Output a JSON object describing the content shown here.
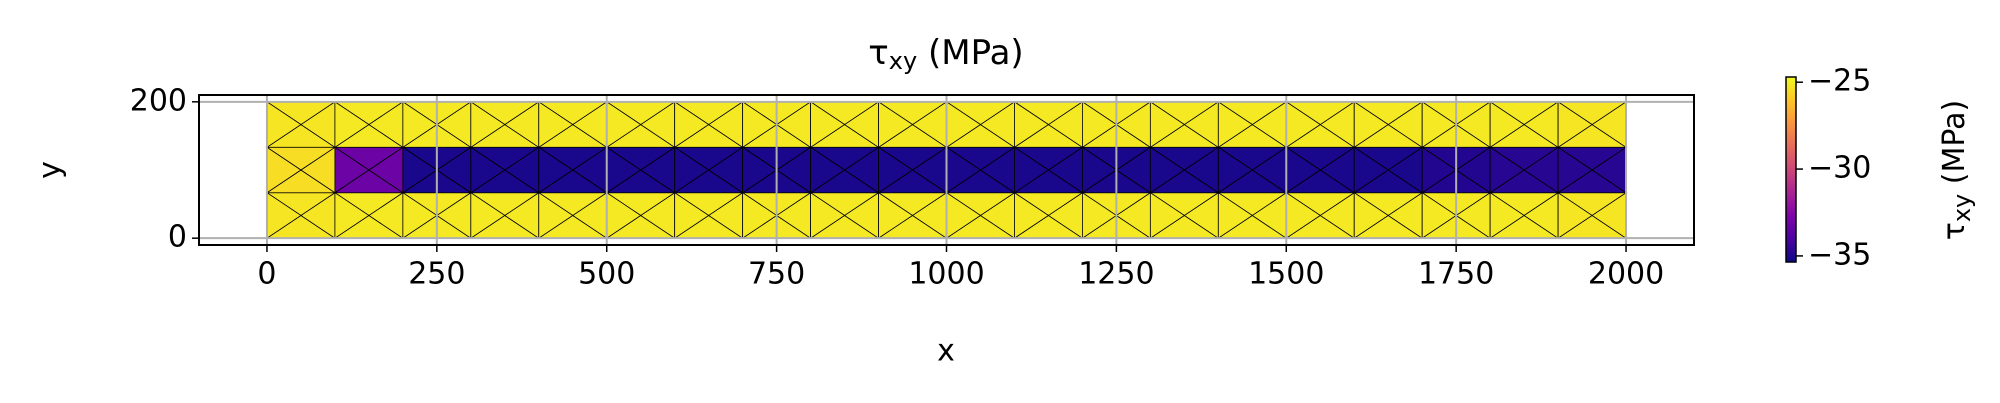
{
  "chart_data": {
    "type": "tripcolor",
    "title": {
      "symbol": "τ",
      "subscript": "xy",
      "unit": "(MPa)"
    },
    "xlabel": "x",
    "ylabel": "y",
    "colorbar_label": {
      "symbol": "τ",
      "subscript": "xy",
      "unit": "(MPa)"
    },
    "colormap": "plasma",
    "x": [
      0,
      100,
      200,
      300,
      400,
      500,
      600,
      700,
      800,
      900,
      1000,
      1100,
      1200,
      1300,
      1400,
      1500,
      1600,
      1700,
      1800,
      1900,
      2000
    ],
    "y": [
      0,
      66.67,
      133.33,
      200
    ],
    "values": [
      [
        -25.2,
        -25.1,
        -25.1,
        -25.1,
        -25.1,
        -25.1,
        -25.1,
        -25.1,
        -25.1,
        -25.1,
        -25.1,
        -25.1,
        -25.1,
        -25.1,
        -25.1,
        -25.1,
        -25.1,
        -25.1,
        -25.1,
        -25.2
      ],
      [
        -25.4,
        -33.2,
        -35.1,
        -35.1,
        -35.1,
        -35.1,
        -35.1,
        -35.1,
        -35.1,
        -35.1,
        -35.1,
        -35.1,
        -35.1,
        -35.1,
        -35.1,
        -35.1,
        -35.1,
        -34.9,
        -34.8,
        -34.8
      ],
      [
        -25.2,
        -25.1,
        -25.1,
        -25.1,
        -25.1,
        -25.1,
        -25.1,
        -25.1,
        -25.1,
        -25.1,
        -25.1,
        -25.1,
        -25.1,
        -25.1,
        -25.1,
        -25.1,
        -25.1,
        -25.1,
        -25.1,
        -25.2
      ]
    ],
    "xlim": [
      -100,
      2100
    ],
    "ylim": [
      -10,
      210
    ],
    "xticks": [
      0,
      250,
      500,
      750,
      1000,
      1250,
      1500,
      1750,
      2000
    ],
    "yticks": [
      0,
      200
    ],
    "clim": [
      -35.35,
      -24.7
    ],
    "cticks": [
      {
        "value": -25,
        "label": "−25"
      },
      {
        "value": -30,
        "label": "−30"
      },
      {
        "value": -35,
        "label": "−35"
      }
    ],
    "grid": true
  }
}
